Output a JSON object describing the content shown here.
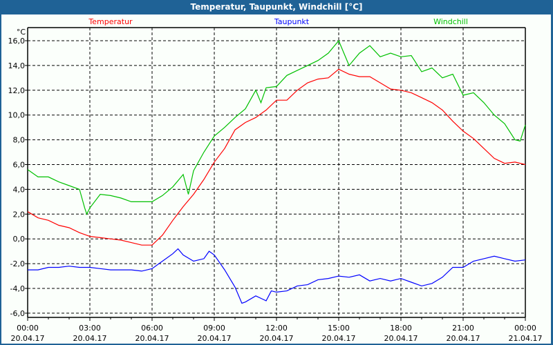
{
  "window": {
    "title": "Temperatur, Taupunkt, Windchill [°C]"
  },
  "chart_data": {
    "type": "line",
    "title": "Temperatur, Taupunkt, Windchill [°C]",
    "ylabel": "°C",
    "ylim": [
      -6.6,
      17.1
    ],
    "xlim": [
      0,
      24
    ],
    "grid": true,
    "yticks": [
      16,
      14,
      12,
      10,
      8,
      6,
      4,
      2,
      0,
      -2,
      -4,
      -6
    ],
    "ytick_labels": [
      "16,0",
      "14,0",
      "12,0",
      "10,0",
      "8,0",
      "6,0",
      "4,0",
      "2,0",
      "0,0",
      "-2,0",
      "-4,0",
      "-6,0"
    ],
    "xticks": [
      0,
      3,
      6,
      9,
      12,
      15,
      18,
      21,
      24
    ],
    "xtick_labels": [
      {
        "time": "00:00",
        "date": "20.04.17"
      },
      {
        "time": "03:00",
        "date": "20.04.17"
      },
      {
        "time": "06:00",
        "date": "20.04.17"
      },
      {
        "time": "09:00",
        "date": "20.04.17"
      },
      {
        "time": "12:00",
        "date": "20.04.17"
      },
      {
        "time": "15:00",
        "date": "20.04.17"
      },
      {
        "time": "18:00",
        "date": "20.04.17"
      },
      {
        "time": "21:00",
        "date": "20.04.17"
      },
      {
        "time": "00:00",
        "date": "21.04.17"
      }
    ],
    "series": [
      {
        "name": "Temperatur",
        "color": "#ff0000",
        "legend": "top-left",
        "x": [
          0,
          0.5,
          1,
          1.5,
          2,
          2.5,
          3,
          3.5,
          4,
          4.5,
          5,
          5.5,
          6,
          6.5,
          7,
          7.5,
          8,
          8.5,
          9,
          9.5,
          10,
          10.5,
          11,
          11.5,
          12,
          12.5,
          13,
          13.5,
          14,
          14.5,
          15,
          15.5,
          16,
          16.5,
          17,
          17.5,
          18,
          18.5,
          19,
          19.5,
          20,
          20.5,
          21,
          21.5,
          22,
          22.5,
          23,
          23.5,
          24
        ],
        "y": [
          2.2,
          1.7,
          1.5,
          1.1,
          0.9,
          0.5,
          0.2,
          0.1,
          0.0,
          -0.1,
          -0.3,
          -0.5,
          -0.5,
          0.3,
          1.5,
          2.6,
          3.6,
          4.8,
          6.2,
          7.3,
          8.8,
          9.4,
          9.8,
          10.4,
          11.2,
          11.2,
          12.0,
          12.6,
          12.9,
          13.0,
          13.7,
          13.3,
          13.1,
          13.1,
          12.6,
          12.1,
          12.0,
          11.8,
          11.4,
          11.0,
          10.4,
          9.5,
          8.7,
          8.1,
          7.3,
          6.5,
          6.1,
          6.2,
          6.0
        ]
      },
      {
        "name": "Taupunkt",
        "color": "#0000ff",
        "legend": "top-center",
        "x": [
          0,
          0.5,
          1,
          1.5,
          2,
          2.5,
          3,
          3.5,
          4,
          4.5,
          5,
          5.5,
          6,
          6.5,
          7,
          7.25,
          7.5,
          8,
          8.5,
          8.75,
          9,
          9.5,
          10,
          10.33,
          10.5,
          11,
          11.5,
          11.75,
          12,
          12.5,
          13,
          13.5,
          14,
          14.5,
          15,
          15.5,
          16,
          16.5,
          17,
          17.5,
          18,
          18.5,
          19,
          19.5,
          20,
          20.5,
          21,
          21.5,
          22,
          22.5,
          23,
          23.5,
          24
        ],
        "y": [
          -2.5,
          -2.5,
          -2.3,
          -2.3,
          -2.2,
          -2.3,
          -2.3,
          -2.4,
          -2.5,
          -2.5,
          -2.5,
          -2.6,
          -2.4,
          -1.8,
          -1.2,
          -0.8,
          -1.3,
          -1.8,
          -1.6,
          -1.0,
          -1.3,
          -2.5,
          -3.9,
          -5.2,
          -5.1,
          -4.6,
          -5.0,
          -4.2,
          -4.3,
          -4.2,
          -3.8,
          -3.7,
          -3.3,
          -3.2,
          -3.0,
          -3.1,
          -2.9,
          -3.4,
          -3.2,
          -3.4,
          -3.2,
          -3.5,
          -3.8,
          -3.6,
          -3.1,
          -2.3,
          -2.3,
          -1.8,
          -1.6,
          -1.4,
          -1.6,
          -1.8,
          -1.7
        ]
      },
      {
        "name": "Windchill",
        "color": "#00c000",
        "legend": "top-right",
        "x": [
          0,
          0.5,
          1,
          1.5,
          2,
          2.5,
          2.75,
          2.85,
          3,
          3.5,
          4,
          4.5,
          5,
          5.5,
          6,
          6.5,
          7,
          7.5,
          7.75,
          8,
          8.5,
          9,
          9.5,
          10,
          10.5,
          11,
          11.25,
          11.5,
          12,
          12.5,
          13,
          13.5,
          14,
          14.5,
          15,
          15.25,
          15.5,
          16,
          16.5,
          17,
          17.5,
          18,
          18.5,
          19,
          19.5,
          20,
          20.5,
          21,
          21.5,
          22,
          22.5,
          23,
          23.5,
          23.75,
          24
        ],
        "y": [
          5.6,
          5.0,
          5.0,
          4.6,
          4.3,
          4.0,
          2.5,
          2.0,
          2.5,
          3.6,
          3.5,
          3.3,
          3.0,
          3.0,
          3.0,
          3.5,
          4.2,
          5.2,
          3.6,
          5.5,
          7.0,
          8.3,
          9.0,
          9.8,
          10.5,
          12.0,
          11.0,
          12.2,
          12.3,
          13.2,
          13.6,
          14.0,
          14.4,
          15.0,
          16.0,
          15.0,
          14.0,
          15.0,
          15.6,
          14.7,
          15.0,
          14.7,
          14.8,
          13.5,
          13.8,
          13.0,
          13.3,
          11.6,
          11.8,
          11.0,
          10.0,
          9.3,
          8.0,
          7.9,
          9.2
        ]
      }
    ]
  }
}
